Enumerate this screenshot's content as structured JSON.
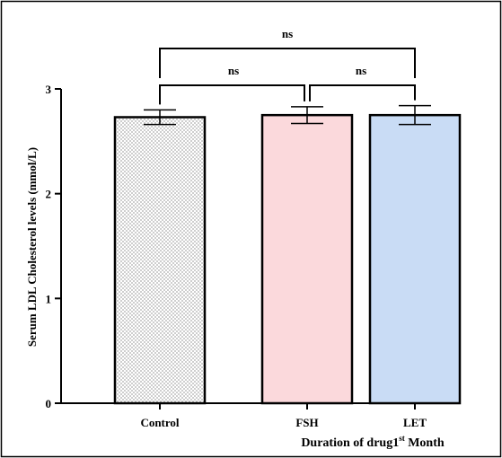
{
  "chart_data": {
    "type": "bar",
    "categories": [
      "Control",
      "FSH",
      "LET"
    ],
    "values": [
      2.73,
      2.75,
      2.75
    ],
    "errors": [
      0.07,
      0.08,
      0.09
    ],
    "colors": [
      "#ffffff",
      "#fbd9dc",
      "#c9dcf5"
    ],
    "pattern": [
      "dotted",
      "none",
      "none"
    ],
    "ylabel": "Serum LDL Cholesterol levels (mmol/L)",
    "xlabel_main": "Duration of drug1",
    "xlabel_sup": "st",
    "xlabel_tail": " Month",
    "yticks": [
      0,
      1,
      2,
      3
    ],
    "ylim": [
      0,
      3
    ],
    "significance": [
      {
        "from": 0,
        "to": 1,
        "label": "ns",
        "level": 1
      },
      {
        "from": 1,
        "to": 2,
        "label": "ns",
        "level": 1
      },
      {
        "from": 0,
        "to": 2,
        "label": "ns",
        "level": 2
      }
    ]
  }
}
